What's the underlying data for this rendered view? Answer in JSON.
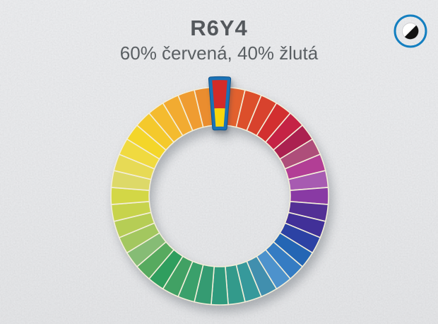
{
  "header": {
    "title": "R6Y4",
    "subtitle": "60% červená, 40% žlutá"
  },
  "controls": {
    "contrast_toggle": {
      "icon": "half-filled-circle-icon",
      "ring_color": "#147fc0",
      "fill_light": "#ffffff",
      "fill_dark": "#111111"
    }
  },
  "theme": {
    "background": "#e3e4e6",
    "title_color": "#54585c",
    "subtitle_color": "#5a5f63",
    "segment_gap_color": "#f3eed9"
  },
  "wheel": {
    "type": "color-wheel",
    "segment_count": 40,
    "segment_arc_deg": 9,
    "selected_segment": {
      "label": "R6Y4",
      "angle_deg": 0,
      "components": [
        {
          "name": "červená",
          "pct": 60,
          "color": "#d32b28"
        },
        {
          "name": "žlutá",
          "pct": 40,
          "color": "#f8d60d"
        }
      ],
      "border_color": "#1a72b6",
      "border_dark": "#0f538c"
    },
    "segment_colors": [
      "#e2612e",
      "#dc4f2b",
      "#d8422d",
      "#d22f2f",
      "#c52345",
      "#ab2150",
      "#ae4e7a",
      "#b23e95",
      "#a75bb1",
      "#893aa4",
      "#533095",
      "#413098",
      "#2c42a4",
      "#2466b4",
      "#357cc3",
      "#4d92cc",
      "#418fae",
      "#36999b",
      "#339a8b",
      "#2f9a7d",
      "#359b72",
      "#3aa06b",
      "#41a164",
      "#2f9e5e",
      "#57aa5f",
      "#86bc75",
      "#a3c75f",
      "#b6cd55",
      "#c7d34c",
      "#d3d746",
      "#ddd968",
      "#e7da55",
      "#f0da40",
      "#f4d62a",
      "#f4c92c",
      "#f4bb2f",
      "#f2ab31",
      "#ef9c31",
      "#ea8d2f"
    ]
  }
}
